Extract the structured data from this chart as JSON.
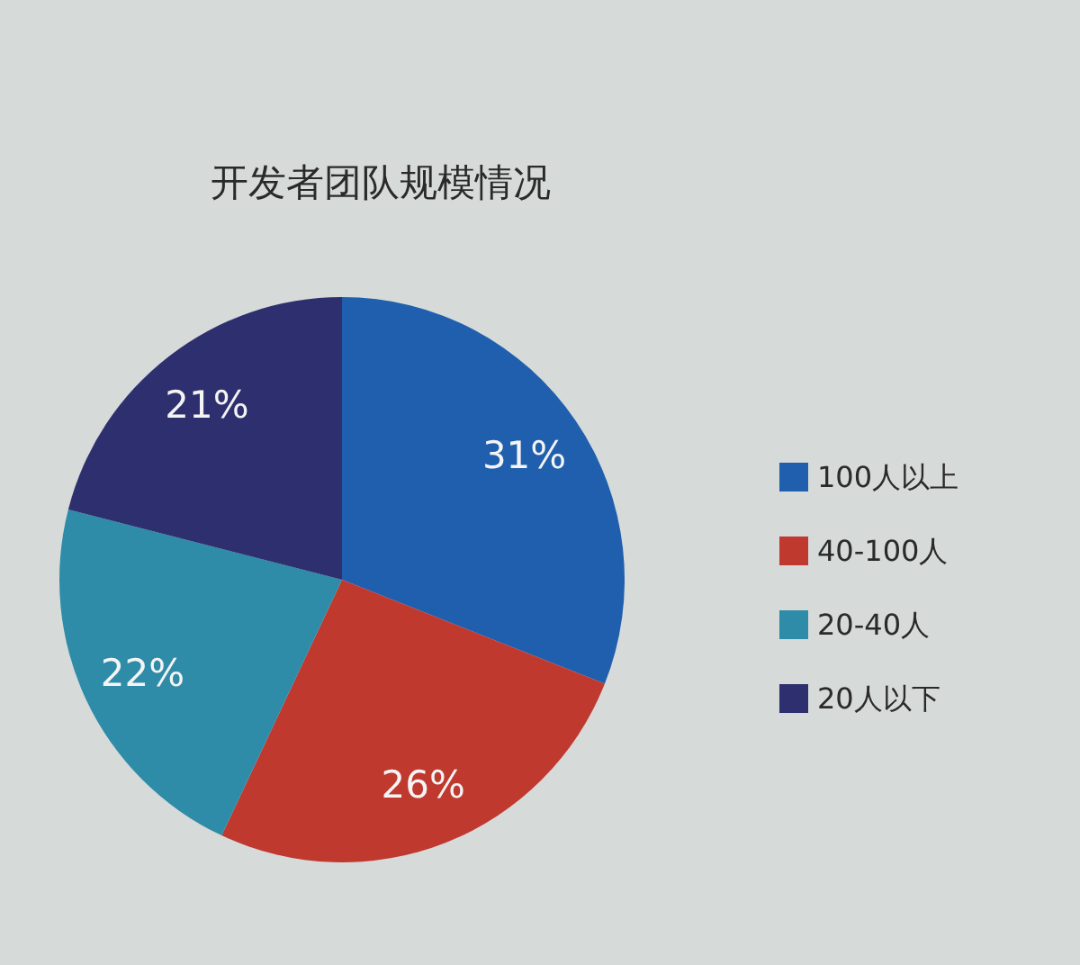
{
  "chart_data": {
    "type": "pie",
    "title": "开发者团队规模情况",
    "categories": [
      "100人以上",
      "40-100人",
      "20-40人",
      "20人以下"
    ],
    "values": [
      31,
      26,
      22,
      21
    ],
    "colors": [
      "#1f5fae",
      "#c0392f",
      "#2e8ca8",
      "#2e2f6e"
    ],
    "value_labels": [
      "31%",
      "26%",
      "22%",
      "21%"
    ],
    "legend": "right"
  }
}
